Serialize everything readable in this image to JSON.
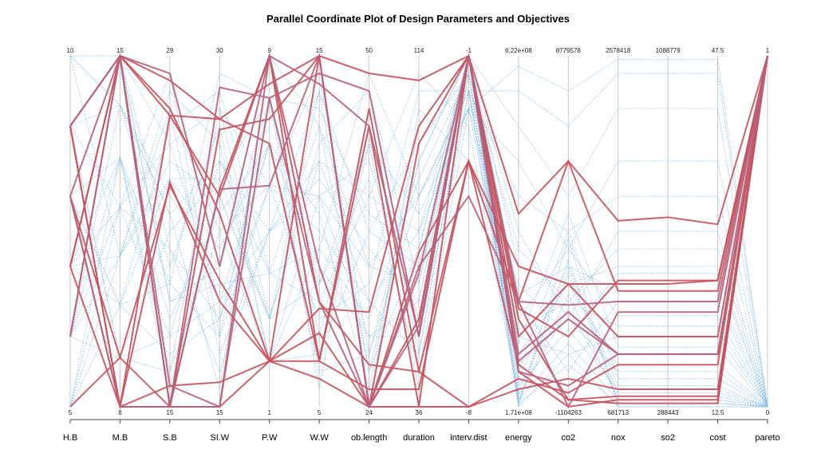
{
  "chart_data": {
    "type": "parallel-coordinates",
    "title": "Parallel Coordinate Plot of Design Parameters and Objectives",
    "axes": [
      {
        "name": "H.B",
        "max": "10",
        "min": "5"
      },
      {
        "name": "M.B",
        "max": "15",
        "min": "8"
      },
      {
        "name": "S.B",
        "max": "29",
        "min": "15"
      },
      {
        "name": "SI.W",
        "max": "30",
        "min": "15"
      },
      {
        "name": "P.W",
        "max": "9",
        "min": "1"
      },
      {
        "name": "W.W",
        "max": "15",
        "min": "5"
      },
      {
        "name": "ob.length",
        "max": "50",
        "min": "24"
      },
      {
        "name": "duration",
        "max": "114",
        "min": "36"
      },
      {
        "name": "interv.dist",
        "max": "-1",
        "min": "-8"
      },
      {
        "name": "energy",
        "max": "6.22e+08",
        "min": "1.71e+08"
      },
      {
        "name": "co2",
        "max": "8779578",
        "min": "-1104263"
      },
      {
        "name": "nox",
        "max": "2578418",
        "min": "681713"
      },
      {
        "name": "so2",
        "max": "1088779",
        "min": "288443"
      },
      {
        "name": "cost",
        "max": "47.5",
        "min": "12.5"
      },
      {
        "name": "pareto",
        "max": "1",
        "min": "0"
      }
    ],
    "series": [
      {
        "group": "pareto",
        "color": "#c8505a",
        "values": [
          0.2,
          1.0,
          0.93,
          0.82,
          0.92,
          1.0,
          0.95,
          0.93,
          1.0,
          0.55,
          0.7,
          0.53,
          0.54,
          0.52,
          1.0
        ]
      },
      {
        "group": "pareto",
        "color": "#c8505a",
        "values": [
          0.4,
          1.0,
          0.83,
          0.6,
          1.0,
          0.3,
          0.12,
          0.1,
          0.7,
          0.4,
          0.35,
          0.35,
          0.35,
          0.36,
          1.0
        ]
      },
      {
        "group": "pareto",
        "color": "#c8505a",
        "values": [
          0.6,
          0.14,
          0.0,
          0.79,
          0.82,
          1.0,
          0.0,
          0.0,
          1.0,
          0.25,
          0.02,
          0.03,
          0.03,
          0.03,
          1.0
        ]
      },
      {
        "group": "pareto",
        "color": "#c8505a",
        "values": [
          0.8,
          1.0,
          0.0,
          0.62,
          1.0,
          0.13,
          0.85,
          0.1,
          0.0,
          0.05,
          0.08,
          0.05,
          0.05,
          0.05,
          1.0
        ]
      },
      {
        "group": "pareto",
        "color": "#c8505a",
        "values": [
          0.8,
          0.0,
          0.0,
          0.0,
          0.13,
          0.28,
          0.27,
          0.8,
          1.0,
          0.2,
          0.35,
          0.2,
          0.2,
          0.2,
          1.0
        ]
      },
      {
        "group": "pareto",
        "color": "#c8505a",
        "values": [
          0.4,
          0.0,
          0.64,
          0.3,
          0.13,
          0.13,
          0.05,
          0.05,
          0.7,
          0.3,
          0.7,
          0.33,
          0.33,
          0.33,
          1.0
        ]
      },
      {
        "group": "pareto",
        "color": "#c8505a",
        "values": [
          0.0,
          0.14,
          0.63,
          0.36,
          0.13,
          0.21,
          0.0,
          0.44,
          0.7,
          0.12,
          0.02,
          0.01,
          0.01,
          0.01,
          1.0
        ]
      },
      {
        "group": "pareto",
        "color": "#c8505a",
        "values": [
          0.6,
          0.0,
          0.83,
          0.82,
          0.75,
          0.13,
          0.8,
          0.0,
          0.0,
          0.08,
          0.04,
          0.12,
          0.12,
          0.12,
          1.0
        ]
      },
      {
        "group": "pareto",
        "color": "#c8505a",
        "values": [
          0.8,
          0.0,
          0.06,
          0.07,
          0.13,
          0.08,
          0.0,
          0.25,
          1.0,
          0.28,
          0.2,
          0.36,
          0.36,
          0.36,
          1.0
        ]
      },
      {
        "group": "pareto",
        "color": "#c8505a",
        "values": [
          0.4,
          1.0,
          0.85,
          0.55,
          0.13,
          1.0,
          0.0,
          0.75,
          1.0,
          0.1,
          0.0,
          0.02,
          0.02,
          0.02,
          1.0
        ]
      },
      {
        "group": "pareto",
        "color": "#b8607a",
        "values": [
          0.8,
          1.0,
          0.0,
          0.0,
          1.0,
          0.92,
          0.8,
          0.2,
          1.0,
          0.13,
          0.25,
          0.15,
          0.15,
          0.15,
          1.0
        ]
      },
      {
        "group": "pareto",
        "color": "#b8607a",
        "values": [
          0.6,
          0.0,
          0.0,
          0.91,
          0.88,
          0.3,
          0.0,
          0.4,
          0.6,
          0.3,
          0.29,
          0.3,
          0.3,
          0.3,
          1.0
        ]
      },
      {
        "group": "pareto",
        "color": "#b8607a",
        "values": [
          0.2,
          1.0,
          0.95,
          0.4,
          1.0,
          0.4,
          0.0,
          0.23,
          1.0,
          0.15,
          0.27,
          0.15,
          0.15,
          0.15,
          1.0
        ]
      },
      {
        "group": "pareto",
        "color": "#b8607a",
        "values": [
          0.8,
          1.0,
          0.0,
          0.62,
          0.63,
          1.0,
          0.0,
          0.38,
          1.0,
          0.3,
          0.0,
          0.27,
          0.27,
          0.27,
          1.0
        ]
      },
      {
        "group": "pareto",
        "color": "#b8607a",
        "values": [
          0.6,
          1.0,
          0.06,
          0.0,
          0.88,
          0.95,
          0.9,
          0.2,
          1.0,
          0.1,
          0.06,
          0.15,
          0.15,
          0.15,
          1.0
        ]
      },
      {
        "group": "other",
        "color": "#7fb8e6",
        "values": [
          1.0,
          0.86,
          0.55,
          0.7,
          0.5,
          0.6,
          0.4,
          0.6,
          0.9,
          0.9,
          0.8,
          0.95,
          0.95,
          0.95,
          0.0
        ]
      },
      {
        "group": "other",
        "color": "#7fb8e6",
        "values": [
          0.0,
          0.57,
          0.2,
          0.3,
          0.75,
          0.4,
          0.2,
          0.3,
          1.0,
          0.8,
          0.6,
          0.85,
          0.85,
          0.85,
          0.0
        ]
      },
      {
        "group": "other",
        "color": "#7fb8e6",
        "values": [
          0.2,
          0.43,
          0.7,
          0.6,
          0.25,
          0.7,
          0.6,
          0.5,
          0.85,
          0.7,
          0.45,
          0.7,
          0.7,
          0.7,
          0.0
        ]
      },
      {
        "group": "other",
        "color": "#7fb8e6",
        "values": [
          0.4,
          0.71,
          0.35,
          0.2,
          0.88,
          0.2,
          0.8,
          0.2,
          0.9,
          0.6,
          0.5,
          0.6,
          0.6,
          0.6,
          0.0
        ]
      },
      {
        "group": "other",
        "color": "#7fb8e6",
        "values": [
          0.6,
          0.29,
          0.8,
          0.9,
          0.38,
          0.8,
          0.1,
          0.7,
          1.0,
          0.5,
          0.25,
          0.5,
          0.5,
          0.5,
          0.0
        ]
      },
      {
        "group": "other",
        "color": "#7fb8e6",
        "values": [
          0.8,
          0.14,
          0.1,
          0.5,
          0.63,
          0.5,
          0.3,
          0.15,
          0.95,
          0.45,
          0.3,
          0.45,
          0.45,
          0.45,
          0.0
        ]
      },
      {
        "group": "other",
        "color": "#7fb8e6",
        "values": [
          1.0,
          1.0,
          0.45,
          0.1,
          0.5,
          0.9,
          0.5,
          0.4,
          1.0,
          0.4,
          0.35,
          0.4,
          0.4,
          0.4,
          0.0
        ]
      },
      {
        "group": "other",
        "color": "#7fb8e6",
        "values": [
          0.2,
          0.86,
          0.6,
          0.4,
          1.0,
          0.3,
          0.0,
          0.85,
          0.7,
          0.35,
          0.2,
          0.38,
          0.38,
          0.38,
          0.0
        ]
      },
      {
        "group": "other",
        "color": "#7fb8e6",
        "values": [
          0.4,
          0.43,
          0.9,
          0.75,
          0.13,
          0.6,
          0.7,
          0.25,
          1.0,
          0.32,
          0.4,
          0.33,
          0.33,
          0.33,
          0.0
        ]
      },
      {
        "group": "other",
        "color": "#7fb8e6",
        "values": [
          0.6,
          0.71,
          0.25,
          0.55,
          0.75,
          0.1,
          0.15,
          0.6,
          0.85,
          0.3,
          0.1,
          0.3,
          0.3,
          0.3,
          0.0
        ]
      },
      {
        "group": "other",
        "color": "#7fb8e6",
        "values": [
          0.8,
          0.57,
          0.75,
          0.85,
          0.25,
          0.75,
          0.9,
          0.35,
          1.0,
          0.25,
          0.45,
          0.26,
          0.26,
          0.26,
          0.0
        ]
      },
      {
        "group": "other",
        "color": "#7fb8e6",
        "values": [
          0.0,
          0.29,
          0.15,
          0.25,
          0.63,
          0.25,
          0.35,
          0.9,
          0.9,
          0.22,
          0.3,
          0.23,
          0.23,
          0.23,
          0.0
        ]
      },
      {
        "group": "other",
        "color": "#7fb8e6",
        "values": [
          0.2,
          0.14,
          0.5,
          0.65,
          0.88,
          0.85,
          0.55,
          0.45,
          1.0,
          0.2,
          0.15,
          0.2,
          0.2,
          0.2,
          0.0
        ]
      },
      {
        "group": "other",
        "color": "#7fb8e6",
        "values": [
          0.4,
          1.0,
          0.3,
          0.35,
          0.38,
          0.45,
          0.25,
          0.65,
          0.95,
          0.18,
          0.55,
          0.17,
          0.17,
          0.17,
          0.0
        ]
      },
      {
        "group": "other",
        "color": "#7fb8e6",
        "values": [
          0.6,
          0.0,
          0.85,
          0.15,
          0.5,
          0.65,
          0.45,
          0.3,
          1.0,
          0.15,
          0.35,
          0.12,
          0.12,
          0.12,
          0.0
        ]
      },
      {
        "group": "other",
        "color": "#7fb8e6",
        "values": [
          0.8,
          0.86,
          0.4,
          0.8,
          0.13,
          0.15,
          0.75,
          0.55,
          0.85,
          0.12,
          0.25,
          0.1,
          0.1,
          0.1,
          0.0
        ]
      },
      {
        "group": "other",
        "color": "#7fb8e6",
        "values": [
          1.0,
          0.43,
          0.65,
          0.45,
          0.75,
          0.55,
          0.05,
          0.8,
          1.0,
          0.1,
          0.5,
          0.08,
          0.08,
          0.08,
          0.0
        ]
      },
      {
        "group": "other",
        "color": "#7fb8e6",
        "values": [
          0.0,
          0.71,
          0.05,
          0.6,
          0.25,
          0.35,
          0.65,
          0.1,
          0.9,
          0.08,
          0.4,
          0.06,
          0.06,
          0.06,
          0.0
        ]
      },
      {
        "group": "other",
        "color": "#7fb8e6",
        "values": [
          0.2,
          0.57,
          0.95,
          0.2,
          0.63,
          0.95,
          0.15,
          0.7,
          1.0,
          0.06,
          0.22,
          0.05,
          0.05,
          0.05,
          0.0
        ]
      },
      {
        "group": "other",
        "color": "#7fb8e6",
        "values": [
          0.4,
          0.29,
          0.35,
          0.95,
          0.88,
          0.05,
          0.85,
          0.15,
          0.95,
          0.04,
          0.38,
          0.04,
          0.04,
          0.04,
          0.0
        ]
      },
      {
        "group": "other",
        "color": "#7fb8e6",
        "values": [
          0.6,
          1.0,
          0.75,
          0.3,
          0.5,
          0.7,
          0.3,
          0.5,
          1.0,
          0.03,
          0.28,
          0.03,
          0.03,
          0.03,
          0.0
        ]
      },
      {
        "group": "other",
        "color": "#7fb8e6",
        "values": [
          0.8,
          0.14,
          0.2,
          0.7,
          0.38,
          0.3,
          0.6,
          0.95,
          0.8,
          0.02,
          0.18,
          0.02,
          0.02,
          0.02,
          0.0
        ]
      },
      {
        "group": "other",
        "color": "#7fb8e6",
        "values": [
          1.0,
          0.86,
          0.55,
          0.05,
          1.0,
          0.8,
          0.4,
          0.35,
          1.0,
          0.02,
          0.32,
          0.02,
          0.02,
          0.02,
          0.0
        ]
      },
      {
        "group": "other",
        "color": "#7fb8e6",
        "values": [
          0.0,
          0.43,
          0.85,
          0.5,
          0.13,
          0.45,
          0.95,
          0.6,
          0.9,
          0.01,
          0.12,
          0.01,
          0.01,
          0.01,
          0.0
        ]
      },
      {
        "group": "other",
        "color": "#7fb8e6",
        "values": [
          0.2,
          0.71,
          0.1,
          0.85,
          0.63,
          0.6,
          0.2,
          0.2,
          1.0,
          0.01,
          0.42,
          0.01,
          0.01,
          0.01,
          0.0
        ]
      },
      {
        "group": "other",
        "color": "#7fb8e6",
        "values": [
          0.4,
          0.57,
          0.45,
          0.25,
          0.75,
          0.15,
          0.5,
          0.75,
          0.95,
          0.0,
          0.15,
          0.0,
          0.0,
          0.0,
          0.0
        ]
      },
      {
        "group": "other",
        "color": "#7fb8e6",
        "values": [
          0.6,
          0.29,
          0.65,
          0.65,
          0.25,
          0.9,
          0.1,
          0.45,
          1.0,
          0.0,
          0.48,
          0.0,
          0.0,
          0.0,
          0.0
        ]
      },
      {
        "group": "other",
        "color": "#7fb8e6",
        "values": [
          0.8,
          1.0,
          0.3,
          0.4,
          0.88,
          0.35,
          0.75,
          0.05,
          0.85,
          0.97,
          0.9,
          0.99,
          0.99,
          0.99,
          0.0
        ]
      }
    ]
  }
}
